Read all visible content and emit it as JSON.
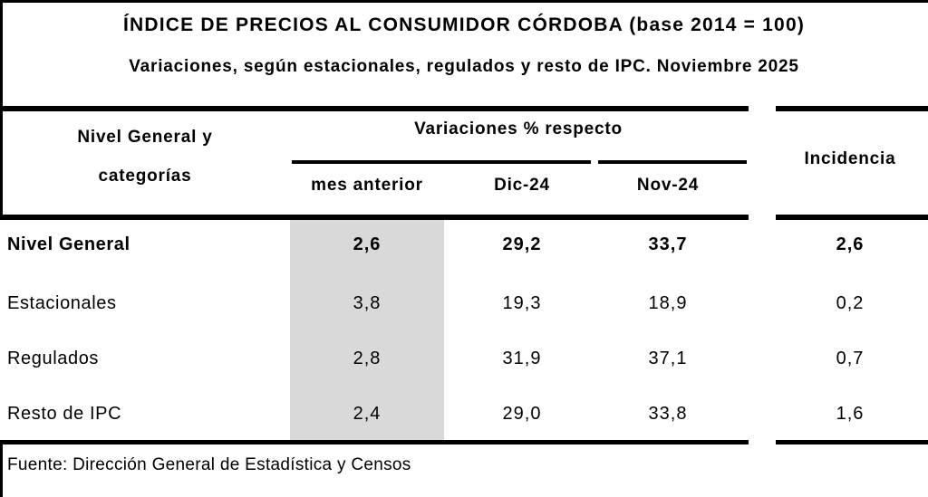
{
  "title": "ÍNDICE DE PRECIOS AL CONSUMIDOR CÓRDOBA (base 2014 = 100)",
  "subtitle": "Variaciones, según estacionales, regulados y resto de IPC. Noviembre 2025",
  "table": {
    "col1_header": {
      "line1": "Nivel General y",
      "line2": "categorías"
    },
    "group_header": "Variaciones % respecto",
    "sub_headers": [
      "mes anterior",
      "Dic-24",
      "Nov-24"
    ],
    "incidencia_header": "Incidencia",
    "highlight_color": "#d9d9d9",
    "rows": [
      {
        "label": "Nivel General",
        "values": [
          "2,6",
          "29,2",
          "33,7",
          "2,6"
        ]
      },
      {
        "label": "Estacionales",
        "values": [
          "3,8",
          "19,3",
          "18,9",
          "0,2"
        ]
      },
      {
        "label": "Regulados",
        "values": [
          "2,8",
          "31,9",
          "37,1",
          "0,7"
        ]
      },
      {
        "label": "Resto de IPC",
        "values": [
          "2,4",
          "29,0",
          "33,8",
          "1,6"
        ]
      }
    ]
  },
  "footer": {
    "source": "Fuente: Dirección General de Estadística y Censos"
  },
  "chart_data": {
    "type": "table",
    "title": "ÍNDICE DE PRECIOS AL CONSUMIDOR CÓRDOBA (base 2014 = 100)",
    "subtitle": "Variaciones, según estacionales, regulados y resto de IPC. Noviembre 2025",
    "column_groups": [
      {
        "label": "Variaciones % respecto",
        "columns": [
          "mes anterior",
          "Dic-24",
          "Nov-24"
        ]
      }
    ],
    "columns": [
      "Nivel General y categorías",
      "mes anterior",
      "Dic-24",
      "Nov-24",
      "Incidencia"
    ],
    "rows": [
      {
        "categoria": "Nivel General",
        "mes_anterior": 2.6,
        "dic_24": 29.2,
        "nov_24": 33.7,
        "incidencia": 2.6
      },
      {
        "categoria": "Estacionales",
        "mes_anterior": 3.8,
        "dic_24": 19.3,
        "nov_24": 18.9,
        "incidencia": 0.2
      },
      {
        "categoria": "Regulados",
        "mes_anterior": 2.8,
        "dic_24": 31.9,
        "nov_24": 37.1,
        "incidencia": 0.7
      },
      {
        "categoria": "Resto de IPC",
        "mes_anterior": 2.4,
        "dic_24": 29.0,
        "nov_24": 33.8,
        "incidencia": 1.6
      }
    ],
    "highlighted_column": "mes anterior",
    "decimal_separator": ",",
    "source": "Fuente: Dirección General de Estadística y Censos"
  }
}
